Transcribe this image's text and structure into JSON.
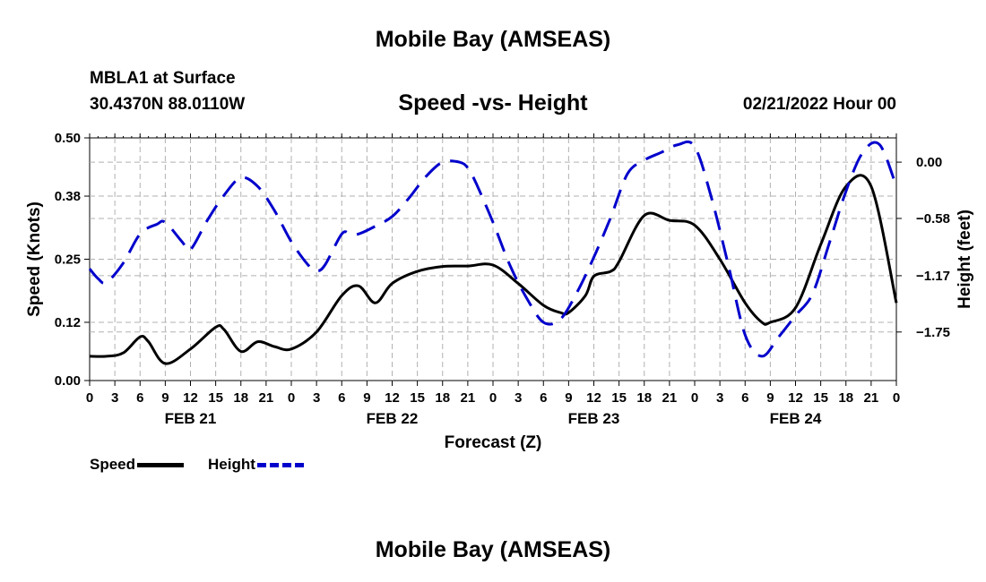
{
  "header": {
    "title": "Mobile Bay (AMSEAS)",
    "station": "MBLA1 at Surface",
    "coords": "30.4370N  88.0110W",
    "subtitle": "Speed -vs- Height",
    "datetime": "02/21/2022 Hour 00"
  },
  "footer": {
    "title": "Mobile Bay (AMSEAS)"
  },
  "legend": {
    "speed_label": "Speed",
    "height_label": "Height"
  },
  "colors": {
    "speed": "#000000",
    "height": "#0000cc",
    "grid": "#b0b0b0"
  },
  "chart_data": {
    "type": "line",
    "xlabel": "Forecast (Z)",
    "ylabel_left": "Speed (Knots)",
    "ylabel_right": "Height (feet)",
    "x_range": [
      0,
      96
    ],
    "x_ticks": [
      0,
      3,
      6,
      9,
      12,
      15,
      18,
      21,
      24,
      27,
      30,
      33,
      36,
      39,
      42,
      45,
      48,
      51,
      54,
      57,
      60,
      63,
      66,
      69,
      72,
      75,
      78,
      81,
      84,
      87,
      90,
      93,
      96
    ],
    "x_tick_labels": [
      "0",
      "3",
      "6",
      "9",
      "12",
      "15",
      "18",
      "21",
      "0",
      "3",
      "6",
      "9",
      "12",
      "15",
      "18",
      "21",
      "0",
      "3",
      "6",
      "9",
      "12",
      "15",
      "18",
      "21",
      "0",
      "3",
      "6",
      "9",
      "12",
      "15",
      "18",
      "21",
      "0"
    ],
    "date_labels": [
      {
        "x": 12,
        "label": "FEB 21"
      },
      {
        "x": 36,
        "label": "FEB 22"
      },
      {
        "x": 60,
        "label": "FEB 23"
      },
      {
        "x": 84,
        "label": "FEB 24"
      }
    ],
    "ylim_left": [
      0,
      0.5
    ],
    "yticks_left": [
      0.0,
      0.12,
      0.25,
      0.38,
      0.5
    ],
    "yticks_left_labels": [
      "0.00",
      "0.12",
      "0.25",
      "0.38",
      "0.50"
    ],
    "ylim_right": [
      -2.25,
      0.25
    ],
    "yticks_right": [
      -1.75,
      -1.17,
      -0.58,
      0.0
    ],
    "yticks_right_labels": [
      "−1.75",
      "−1.17",
      "−0.58",
      "0.00"
    ],
    "series": [
      {
        "name": "Speed",
        "axis": "left",
        "x": [
          0,
          2,
          4,
          6,
          7,
          9,
          12,
          15,
          16,
          18,
          20,
          22,
          24,
          27,
          30,
          32,
          34,
          36,
          39,
          42,
          45,
          48,
          51,
          54,
          56,
          57,
          59,
          60,
          62,
          63,
          66,
          69,
          72,
          75,
          78,
          80,
          81,
          84,
          87,
          90,
          93,
          96
        ],
        "y": [
          0.05,
          0.05,
          0.057,
          0.09,
          0.08,
          0.035,
          0.065,
          0.11,
          0.105,
          0.06,
          0.08,
          0.07,
          0.065,
          0.1,
          0.175,
          0.195,
          0.16,
          0.2,
          0.225,
          0.235,
          0.236,
          0.238,
          0.2,
          0.155,
          0.14,
          0.14,
          0.175,
          0.215,
          0.225,
          0.245,
          0.34,
          0.33,
          0.32,
          0.25,
          0.16,
          0.12,
          0.12,
          0.15,
          0.28,
          0.4,
          0.4,
          0.16
        ]
      },
      {
        "name": "Height",
        "axis": "right",
        "x": [
          0,
          1,
          2,
          4,
          6,
          8,
          9,
          11,
          12,
          14,
          16,
          18,
          20,
          22,
          24,
          26,
          27,
          28,
          30,
          31,
          32,
          34,
          36,
          38,
          40,
          42,
          44,
          45,
          46,
          48,
          50,
          52,
          54,
          56,
          58,
          60,
          62,
          64,
          66,
          68,
          70,
          72,
          74,
          76,
          78,
          80,
          82,
          84,
          86,
          88,
          90,
          92,
          94,
          96
        ],
        "y": [
          -1.1,
          -1.2,
          -1.24,
          -1.04,
          -0.74,
          -0.64,
          -0.62,
          -0.82,
          -0.9,
          -0.6,
          -0.34,
          -0.16,
          -0.25,
          -0.5,
          -0.82,
          -1.06,
          -1.12,
          -1.06,
          -0.74,
          -0.74,
          -0.74,
          -0.66,
          -0.56,
          -0.37,
          -0.15,
          0.0,
          0.0,
          -0.06,
          -0.22,
          -0.62,
          -1.06,
          -1.4,
          -1.65,
          -1.62,
          -1.34,
          -0.98,
          -0.57,
          -0.12,
          0.02,
          0.1,
          0.18,
          0.16,
          -0.37,
          -1.06,
          -1.78,
          -2.0,
          -1.8,
          -1.58,
          -1.36,
          -0.84,
          -0.3,
          0.1,
          0.18,
          -0.25
        ]
      }
    ]
  }
}
